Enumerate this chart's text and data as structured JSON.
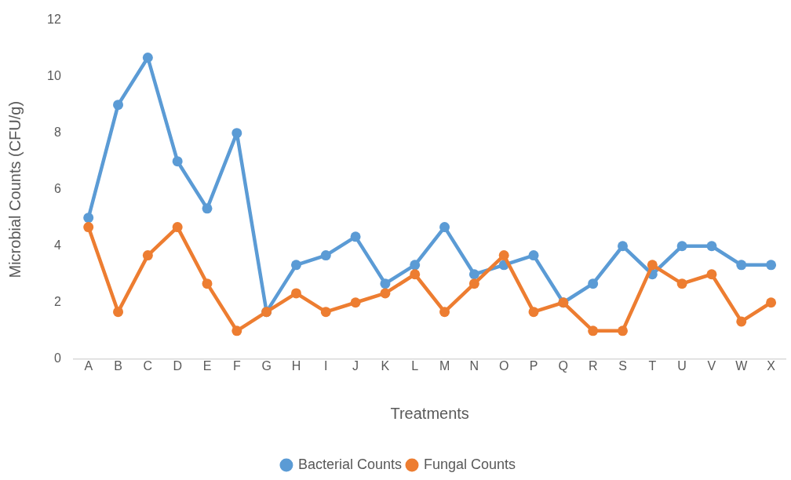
{
  "chart_data": {
    "type": "line",
    "xlabel": "Treatments",
    "ylabel": "Microbial Counts (CFU/g)",
    "categories": [
      "A",
      "B",
      "C",
      "D",
      "E",
      "F",
      "G",
      "H",
      "I",
      "J",
      "K",
      "L",
      "M",
      "N",
      "O",
      "P",
      "Q",
      "R",
      "S",
      "T",
      "U",
      "V",
      "W",
      "X"
    ],
    "series": [
      {
        "name": "Bacterial Counts",
        "color": "#5b9bd5",
        "values": [
          5,
          9,
          10.67,
          7,
          5.33,
          8,
          1.67,
          3.33,
          3.67,
          4.33,
          2.67,
          3.33,
          4.67,
          3,
          3.33,
          3.67,
          2,
          2.67,
          4,
          3,
          4,
          4,
          3.33,
          3.33
        ]
      },
      {
        "name": "Fungal Counts",
        "color": "#ed7d31",
        "values": [
          4.67,
          1.67,
          3.67,
          4.67,
          2.67,
          1,
          1.67,
          2.33,
          1.67,
          2,
          2.33,
          3,
          1.67,
          2.67,
          3.67,
          1.67,
          2,
          1,
          1,
          3.33,
          2.67,
          3,
          1.33,
          2
        ]
      }
    ],
    "ylim": [
      0,
      12
    ],
    "yticks": [
      0,
      2,
      4,
      6,
      8,
      10,
      12
    ],
    "grid": false,
    "legend": "bottom",
    "marker": "circle",
    "line_style": "solid"
  }
}
